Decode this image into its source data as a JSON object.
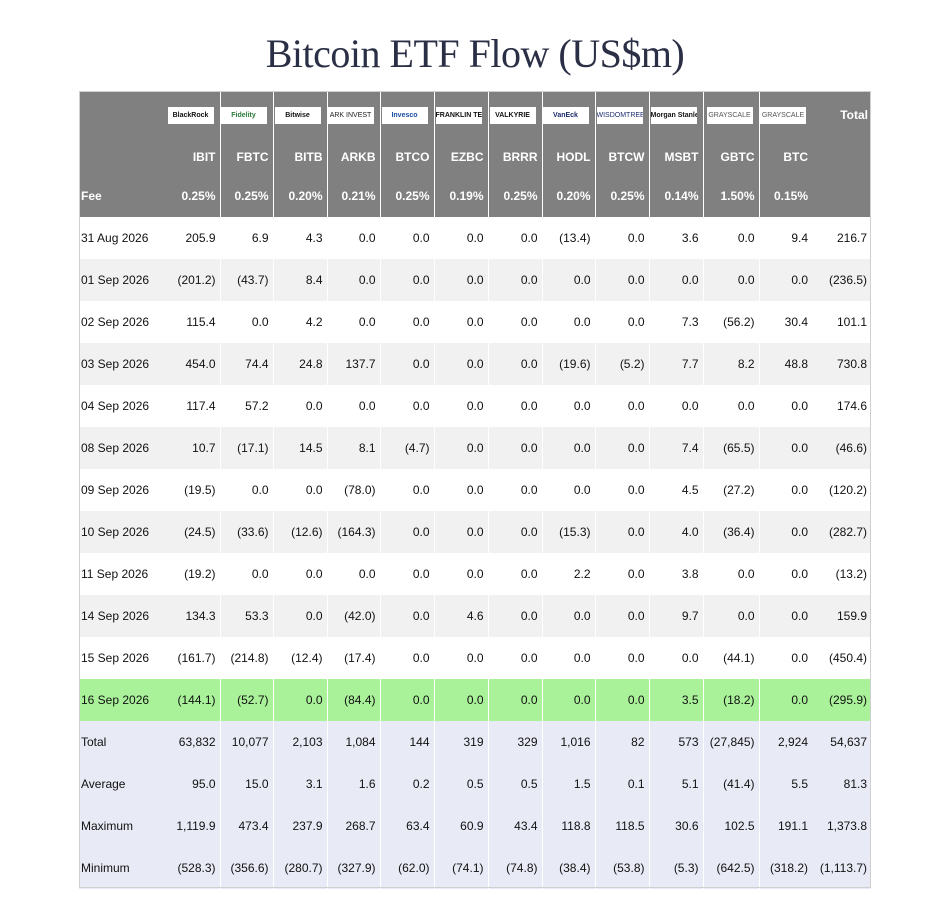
{
  "title": "Bitcoin ETF Flow (US$m)",
  "colors": {
    "header_bg": "#808080",
    "negative": "#d02020",
    "zero": "#bdbdbd",
    "highlight": "#aaf29a",
    "summary_bg": "#e8eaf5"
  },
  "issuers": [
    "BlackRock",
    "Fidelity",
    "Bitwise",
    "ARK INVEST",
    "Invesco",
    "FRANKLIN TEMPLETON",
    "VALKYRIE",
    "VanEck",
    "WISDOMTREE",
    "Morgan Stanley",
    "GRAYSCALE",
    "GRAYSCALE"
  ],
  "tickers": [
    "IBIT",
    "FBTC",
    "BITB",
    "ARKB",
    "BTCO",
    "EZBC",
    "BRRR",
    "HODL",
    "BTCW",
    "MSBT",
    "GBTC",
    "BTC"
  ],
  "total_label": "Total",
  "fee_label": "Fee",
  "fees": [
    "0.25%",
    "0.25%",
    "0.20%",
    "0.21%",
    "0.25%",
    "0.19%",
    "0.25%",
    "0.20%",
    "0.25%",
    "0.14%",
    "1.50%",
    "0.15%"
  ],
  "rows": [
    {
      "date": "31 Aug 2026",
      "values": [
        "205.9",
        "6.9",
        "4.3",
        "0.0",
        "0.0",
        "0.0",
        "0.0",
        "(13.4)",
        "0.0",
        "3.6",
        "0.0",
        "9.4"
      ],
      "total": "216.7"
    },
    {
      "date": "01 Sep 2026",
      "values": [
        "(201.2)",
        "(43.7)",
        "8.4",
        "0.0",
        "0.0",
        "0.0",
        "0.0",
        "0.0",
        "0.0",
        "0.0",
        "0.0",
        "0.0"
      ],
      "total": "(236.5)"
    },
    {
      "date": "02 Sep 2026",
      "values": [
        "115.4",
        "0.0",
        "4.2",
        "0.0",
        "0.0",
        "0.0",
        "0.0",
        "0.0",
        "0.0",
        "7.3",
        "(56.2)",
        "30.4"
      ],
      "total": "101.1"
    },
    {
      "date": "03 Sep 2026",
      "values": [
        "454.0",
        "74.4",
        "24.8",
        "137.7",
        "0.0",
        "0.0",
        "0.0",
        "(19.6)",
        "(5.2)",
        "7.7",
        "8.2",
        "48.8"
      ],
      "total": "730.8"
    },
    {
      "date": "04 Sep 2026",
      "values": [
        "117.4",
        "57.2",
        "0.0",
        "0.0",
        "0.0",
        "0.0",
        "0.0",
        "0.0",
        "0.0",
        "0.0",
        "0.0",
        "0.0"
      ],
      "total": "174.6"
    },
    {
      "date": "08 Sep 2026",
      "values": [
        "10.7",
        "(17.1)",
        "14.5",
        "8.1",
        "(4.7)",
        "0.0",
        "0.0",
        "0.0",
        "0.0",
        "7.4",
        "(65.5)",
        "0.0"
      ],
      "total": "(46.6)"
    },
    {
      "date": "09 Sep 2026",
      "values": [
        "(19.5)",
        "0.0",
        "0.0",
        "(78.0)",
        "0.0",
        "0.0",
        "0.0",
        "0.0",
        "0.0",
        "4.5",
        "(27.2)",
        "0.0"
      ],
      "total": "(120.2)"
    },
    {
      "date": "10 Sep 2026",
      "values": [
        "(24.5)",
        "(33.6)",
        "(12.6)",
        "(164.3)",
        "0.0",
        "0.0",
        "0.0",
        "(15.3)",
        "0.0",
        "4.0",
        "(36.4)",
        "0.0"
      ],
      "total": "(282.7)"
    },
    {
      "date": "11 Sep 2026",
      "values": [
        "(19.2)",
        "0.0",
        "0.0",
        "0.0",
        "0.0",
        "0.0",
        "0.0",
        "2.2",
        "0.0",
        "3.8",
        "0.0",
        "0.0"
      ],
      "total": "(13.2)"
    },
    {
      "date": "14 Sep 2026",
      "values": [
        "134.3",
        "53.3",
        "0.0",
        "(42.0)",
        "0.0",
        "4.6",
        "0.0",
        "0.0",
        "0.0",
        "9.7",
        "0.0",
        "0.0"
      ],
      "total": "159.9"
    },
    {
      "date": "15 Sep 2026",
      "values": [
        "(161.7)",
        "(214.8)",
        "(12.4)",
        "(17.4)",
        "0.0",
        "0.0",
        "0.0",
        "0.0",
        "0.0",
        "0.0",
        "(44.1)",
        "0.0"
      ],
      "total": "(450.4)"
    },
    {
      "date": "16 Sep 2026",
      "values": [
        "(144.1)",
        "(52.7)",
        "0.0",
        "(84.4)",
        "0.0",
        "0.0",
        "0.0",
        "0.0",
        "0.0",
        "3.5",
        "(18.2)",
        "0.0"
      ],
      "total": "(295.9)",
      "highlight": true
    }
  ],
  "summary": [
    {
      "label": "Total",
      "values": [
        "63,832",
        "10,077",
        "2,103",
        "1,084",
        "144",
        "319",
        "329",
        "1,016",
        "82",
        "573",
        "(27,845)",
        "2,924"
      ],
      "total": "54,637"
    },
    {
      "label": "Average",
      "values": [
        "95.0",
        "15.0",
        "3.1",
        "1.6",
        "0.2",
        "0.5",
        "0.5",
        "1.5",
        "0.1",
        "5.1",
        "(41.4)",
        "5.5"
      ],
      "total": "81.3"
    },
    {
      "label": "Maximum",
      "values": [
        "1,119.9",
        "473.4",
        "237.9",
        "268.7",
        "63.4",
        "60.9",
        "43.4",
        "118.8",
        "118.5",
        "30.6",
        "102.5",
        "191.1"
      ],
      "total": "1,373.8"
    },
    {
      "label": "Minimum",
      "values": [
        "(528.3)",
        "(356.6)",
        "(280.7)",
        "(327.9)",
        "(62.0)",
        "(74.1)",
        "(74.8)",
        "(38.4)",
        "(53.8)",
        "(5.3)",
        "(642.5)",
        "(318.2)"
      ],
      "total": "(1,113.7)"
    }
  ]
}
